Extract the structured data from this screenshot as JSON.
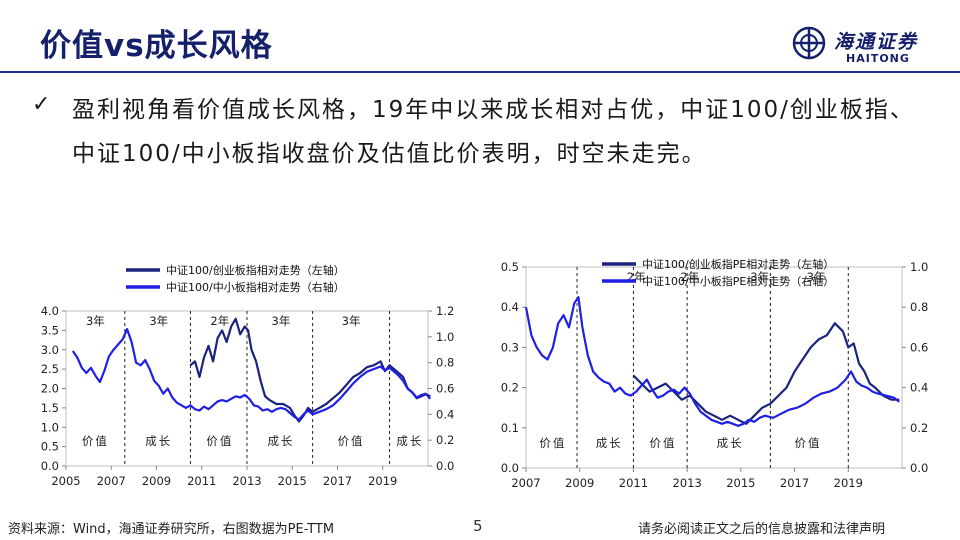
{
  "title": "价值vs成长风格",
  "logo": {
    "cn": "海通证券",
    "en": "HAITONG"
  },
  "bullet": {
    "mark": "✓",
    "text": "盈利视角看价值成长风格，19年中以来成长相对占优，中证100/创业板指、中证100/中小板指收盘价及估值比价表明，时空未走完。"
  },
  "footer": {
    "source": "资料来源：Wind，海通证券研究所，右图数据为PE-TTM",
    "page": "5",
    "disclaimer": "请务必阅读正文之后的信息披露和法律声明"
  },
  "colors": {
    "navy": "#1a237e",
    "blue": "#1f1fe8",
    "accent": "#15206a"
  },
  "chart_data": [
    {
      "type": "line",
      "title": "",
      "x_range": [
        2005,
        2021
      ],
      "x_ticks": [
        "2005",
        "2007",
        "2009",
        "2011",
        "2013",
        "2015",
        "2017",
        "2019"
      ],
      "y_left": {
        "range": [
          0,
          4
        ],
        "ticks": [
          "0.0",
          "0.5",
          "1.0",
          "1.5",
          "2.0",
          "2.5",
          "3.0",
          "3.5",
          "4.0"
        ]
      },
      "y_right": {
        "range": [
          0,
          1.2
        ],
        "ticks": [
          "0.0",
          "0.2",
          "0.4",
          "0.6",
          "0.8",
          "1.0",
          "1.2"
        ]
      },
      "series": [
        {
          "name": "中证100/创业板指相对走势（左轴）",
          "axis": "left",
          "color": "#1a237e",
          "points": [
            [
              2010.5,
              2.6
            ],
            [
              2010.7,
              2.7
            ],
            [
              2010.9,
              2.3
            ],
            [
              2011.1,
              2.8
            ],
            [
              2011.3,
              3.1
            ],
            [
              2011.5,
              2.7
            ],
            [
              2011.7,
              3.3
            ],
            [
              2011.9,
              3.5
            ],
            [
              2012.1,
              3.2
            ],
            [
              2012.3,
              3.6
            ],
            [
              2012.5,
              3.8
            ],
            [
              2012.7,
              3.4
            ],
            [
              2012.9,
              3.6
            ],
            [
              2013.05,
              3.5
            ],
            [
              2013.2,
              3.0
            ],
            [
              2013.4,
              2.7
            ],
            [
              2013.6,
              2.2
            ],
            [
              2013.8,
              1.8
            ],
            [
              2014.0,
              1.7
            ],
            [
              2014.3,
              1.6
            ],
            [
              2014.6,
              1.6
            ],
            [
              2014.9,
              1.5
            ],
            [
              2015.1,
              1.3
            ],
            [
              2015.3,
              1.15
            ],
            [
              2015.5,
              1.3
            ],
            [
              2015.7,
              1.5
            ],
            [
              2015.9,
              1.4
            ],
            [
              2016.2,
              1.5
            ],
            [
              2016.5,
              1.6
            ],
            [
              2016.8,
              1.75
            ],
            [
              2017.1,
              1.9
            ],
            [
              2017.4,
              2.1
            ],
            [
              2017.7,
              2.3
            ],
            [
              2018.0,
              2.4
            ],
            [
              2018.3,
              2.55
            ],
            [
              2018.6,
              2.6
            ],
            [
              2018.9,
              2.7
            ],
            [
              2019.1,
              2.45
            ],
            [
              2019.3,
              2.6
            ],
            [
              2019.5,
              2.5
            ],
            [
              2019.7,
              2.4
            ],
            [
              2019.9,
              2.3
            ],
            [
              2020.1,
              2.0
            ],
            [
              2020.3,
              1.9
            ],
            [
              2020.5,
              1.75
            ],
            [
              2020.7,
              1.8
            ],
            [
              2020.9,
              1.85
            ],
            [
              2021.1,
              1.8
            ]
          ]
        },
        {
          "name": "中证100/中小板指相对走势（右轴）",
          "axis": "right",
          "color": "#1f1fe8",
          "points": [
            [
              2005.3,
              0.89
            ],
            [
              2005.5,
              0.84
            ],
            [
              2005.7,
              0.76
            ],
            [
              2005.9,
              0.72
            ],
            [
              2006.1,
              0.76
            ],
            [
              2006.3,
              0.7
            ],
            [
              2006.5,
              0.65
            ],
            [
              2006.7,
              0.74
            ],
            [
              2006.9,
              0.85
            ],
            [
              2007.1,
              0.9
            ],
            [
              2007.3,
              0.94
            ],
            [
              2007.5,
              0.98
            ],
            [
              2007.7,
              1.06
            ],
            [
              2007.9,
              0.96
            ],
            [
              2008.1,
              0.8
            ],
            [
              2008.3,
              0.78
            ],
            [
              2008.5,
              0.82
            ],
            [
              2008.7,
              0.75
            ],
            [
              2008.9,
              0.66
            ],
            [
              2009.1,
              0.62
            ],
            [
              2009.3,
              0.56
            ],
            [
              2009.5,
              0.6
            ],
            [
              2009.7,
              0.53
            ],
            [
              2009.9,
              0.49
            ],
            [
              2010.1,
              0.47
            ],
            [
              2010.3,
              0.45
            ],
            [
              2010.5,
              0.47
            ],
            [
              2010.7,
              0.44
            ],
            [
              2010.9,
              0.43
            ],
            [
              2011.1,
              0.46
            ],
            [
              2011.3,
              0.44
            ],
            [
              2011.5,
              0.47
            ],
            [
              2011.7,
              0.5
            ],
            [
              2011.9,
              0.51
            ],
            [
              2012.1,
              0.5
            ],
            [
              2012.3,
              0.52
            ],
            [
              2012.5,
              0.54
            ],
            [
              2012.7,
              0.53
            ],
            [
              2012.9,
              0.55
            ],
            [
              2013.1,
              0.52
            ],
            [
              2013.3,
              0.47
            ],
            [
              2013.5,
              0.46
            ],
            [
              2013.7,
              0.43
            ],
            [
              2013.9,
              0.44
            ],
            [
              2014.1,
              0.42
            ],
            [
              2014.3,
              0.44
            ],
            [
              2014.5,
              0.45
            ],
            [
              2014.7,
              0.44
            ],
            [
              2014.9,
              0.41
            ],
            [
              2015.1,
              0.38
            ],
            [
              2015.3,
              0.36
            ],
            [
              2015.5,
              0.4
            ],
            [
              2015.7,
              0.43
            ],
            [
              2015.9,
              0.4
            ],
            [
              2016.2,
              0.42
            ],
            [
              2016.5,
              0.44
            ],
            [
              2016.8,
              0.47
            ],
            [
              2017.1,
              0.52
            ],
            [
              2017.4,
              0.58
            ],
            [
              2017.7,
              0.64
            ],
            [
              2018.0,
              0.69
            ],
            [
              2018.3,
              0.73
            ],
            [
              2018.6,
              0.75
            ],
            [
              2018.9,
              0.77
            ],
            [
              2019.1,
              0.74
            ],
            [
              2019.3,
              0.76
            ],
            [
              2019.5,
              0.73
            ],
            [
              2019.7,
              0.7
            ],
            [
              2019.9,
              0.66
            ],
            [
              2020.1,
              0.6
            ],
            [
              2020.3,
              0.57
            ],
            [
              2020.5,
              0.53
            ],
            [
              2020.7,
              0.55
            ],
            [
              2020.9,
              0.56
            ],
            [
              2021.1,
              0.52
            ]
          ]
        }
      ],
      "period_lines": [
        2007.6,
        2010.5,
        2013.0,
        2015.9,
        2019.3
      ],
      "period_top_labels": [
        {
          "x": 2006.3,
          "text": "3年"
        },
        {
          "x": 2009.1,
          "text": "3年"
        },
        {
          "x": 2011.8,
          "text": "2年"
        },
        {
          "x": 2014.5,
          "text": "3年"
        },
        {
          "x": 2017.6,
          "text": "3年"
        }
      ],
      "period_bottom_labels": [
        {
          "x": 2006.3,
          "text": "价值"
        },
        {
          "x": 2009.1,
          "text": "成长"
        },
        {
          "x": 2011.8,
          "text": "价值"
        },
        {
          "x": 2014.5,
          "text": "成长"
        },
        {
          "x": 2017.6,
          "text": "价值"
        },
        {
          "x": 2020.2,
          "text": "成长"
        }
      ],
      "legend": "top"
    },
    {
      "type": "line",
      "title": "",
      "x_range": [
        2007,
        2021
      ],
      "x_ticks": [
        "2007",
        "2009",
        "2011",
        "2013",
        "2015",
        "2017",
        "2019"
      ],
      "y_left": {
        "range": [
          0,
          0.5
        ],
        "ticks": [
          "0.0",
          "0.1",
          "0.2",
          "0.3",
          "0.4",
          "0.5"
        ]
      },
      "y_right": {
        "range": [
          0,
          1.0
        ],
        "ticks": [
          "0.0",
          "0.2",
          "0.4",
          "0.6",
          "0.8",
          "1.0"
        ]
      },
      "series": [
        {
          "name": "中证100/创业板指PE相对走势（左轴）",
          "axis": "left",
          "color": "#1a237e",
          "points": [
            [
              2011.0,
              0.23
            ],
            [
              2011.3,
              0.21
            ],
            [
              2011.6,
              0.19
            ],
            [
              2011.9,
              0.2
            ],
            [
              2012.2,
              0.21
            ],
            [
              2012.5,
              0.19
            ],
            [
              2012.8,
              0.17
            ],
            [
              2013.1,
              0.18
            ],
            [
              2013.4,
              0.16
            ],
            [
              2013.7,
              0.14
            ],
            [
              2014.0,
              0.13
            ],
            [
              2014.3,
              0.12
            ],
            [
              2014.6,
              0.13
            ],
            [
              2014.9,
              0.12
            ],
            [
              2015.2,
              0.11
            ],
            [
              2015.5,
              0.13
            ],
            [
              2015.8,
              0.15
            ],
            [
              2016.1,
              0.16
            ],
            [
              2016.4,
              0.18
            ],
            [
              2016.7,
              0.2
            ],
            [
              2017.0,
              0.24
            ],
            [
              2017.3,
              0.27
            ],
            [
              2017.6,
              0.3
            ],
            [
              2017.9,
              0.32
            ],
            [
              2018.2,
              0.33
            ],
            [
              2018.5,
              0.36
            ],
            [
              2018.8,
              0.34
            ],
            [
              2019.0,
              0.3
            ],
            [
              2019.2,
              0.31
            ],
            [
              2019.4,
              0.26
            ],
            [
              2019.6,
              0.24
            ],
            [
              2019.8,
              0.21
            ],
            [
              2020.0,
              0.2
            ],
            [
              2020.3,
              0.18
            ],
            [
              2020.6,
              0.17
            ],
            [
              2020.9,
              0.17
            ]
          ]
        },
        {
          "name": "中证100/中小板指PE相对走势（右轴）",
          "axis": "right",
          "color": "#1f1fe8",
          "points": [
            [
              2007.0,
              0.8
            ],
            [
              2007.2,
              0.66
            ],
            [
              2007.4,
              0.6
            ],
            [
              2007.6,
              0.56
            ],
            [
              2007.8,
              0.54
            ],
            [
              2008.0,
              0.6
            ],
            [
              2008.2,
              0.72
            ],
            [
              2008.4,
              0.76
            ],
            [
              2008.6,
              0.7
            ],
            [
              2008.8,
              0.82
            ],
            [
              2008.95,
              0.85
            ],
            [
              2009.1,
              0.7
            ],
            [
              2009.3,
              0.56
            ],
            [
              2009.5,
              0.48
            ],
            [
              2009.7,
              0.45
            ],
            [
              2009.9,
              0.43
            ],
            [
              2010.1,
              0.42
            ],
            [
              2010.3,
              0.38
            ],
            [
              2010.5,
              0.4
            ],
            [
              2010.7,
              0.37
            ],
            [
              2010.9,
              0.36
            ],
            [
              2011.1,
              0.38
            ],
            [
              2011.3,
              0.41
            ],
            [
              2011.5,
              0.44
            ],
            [
              2011.7,
              0.39
            ],
            [
              2011.9,
              0.35
            ],
            [
              2012.1,
              0.36
            ],
            [
              2012.3,
              0.38
            ],
            [
              2012.5,
              0.39
            ],
            [
              2012.7,
              0.37
            ],
            [
              2012.9,
              0.4
            ],
            [
              2013.1,
              0.37
            ],
            [
              2013.3,
              0.32
            ],
            [
              2013.5,
              0.28
            ],
            [
              2013.7,
              0.26
            ],
            [
              2013.9,
              0.24
            ],
            [
              2014.1,
              0.23
            ],
            [
              2014.3,
              0.22
            ],
            [
              2014.5,
              0.23
            ],
            [
              2014.7,
              0.22
            ],
            [
              2014.9,
              0.21
            ],
            [
              2015.1,
              0.22
            ],
            [
              2015.3,
              0.24
            ],
            [
              2015.5,
              0.23
            ],
            [
              2015.7,
              0.25
            ],
            [
              2015.9,
              0.26
            ],
            [
              2016.2,
              0.25
            ],
            [
              2016.5,
              0.27
            ],
            [
              2016.8,
              0.29
            ],
            [
              2017.1,
              0.3
            ],
            [
              2017.4,
              0.32
            ],
            [
              2017.7,
              0.35
            ],
            [
              2018.0,
              0.37
            ],
            [
              2018.3,
              0.38
            ],
            [
              2018.6,
              0.4
            ],
            [
              2018.9,
              0.44
            ],
            [
              2019.1,
              0.48
            ],
            [
              2019.3,
              0.43
            ],
            [
              2019.5,
              0.41
            ],
            [
              2019.7,
              0.4
            ],
            [
              2019.9,
              0.38
            ],
            [
              2020.1,
              0.37
            ],
            [
              2020.4,
              0.36
            ],
            [
              2020.7,
              0.35
            ],
            [
              2020.9,
              0.33
            ]
          ]
        }
      ],
      "period_lines": [
        2008.9,
        2011.0,
        2013.0,
        2016.1,
        2019.0
      ],
      "period_top_labels": [
        {
          "x": 2011.1,
          "text": "2年"
        },
        {
          "x": 2013.1,
          "text": "2年"
        },
        {
          "x": 2015.7,
          "text": "3年"
        },
        {
          "x": 2017.8,
          "text": "3年"
        }
      ],
      "period_bottom_labels": [
        {
          "x": 2008.0,
          "text": "价值"
        },
        {
          "x": 2010.1,
          "text": "成长"
        },
        {
          "x": 2012.1,
          "text": "价值"
        },
        {
          "x": 2014.6,
          "text": "成长"
        },
        {
          "x": 2017.5,
          "text": "价值"
        }
      ],
      "legend": "top"
    }
  ]
}
